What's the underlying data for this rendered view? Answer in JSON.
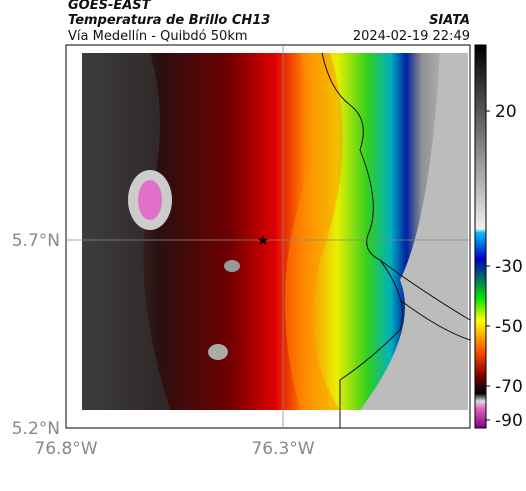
{
  "header": {
    "satellite": "GOES-EAST",
    "title": "Temperatura de Brillo CH13",
    "subtitle": "Vía Medellín - Quibdó 50km",
    "org": "SIATA",
    "datetime": "2024-02-19 22:49"
  },
  "map": {
    "lat_ticks": [
      "5.7°N",
      "5.2°N"
    ],
    "lon_ticks": [
      "76.8°W",
      "76.3°W"
    ]
  },
  "colorbar": {
    "ticks": [
      "20",
      "-30",
      "-50",
      "-70",
      "-90"
    ]
  }
}
